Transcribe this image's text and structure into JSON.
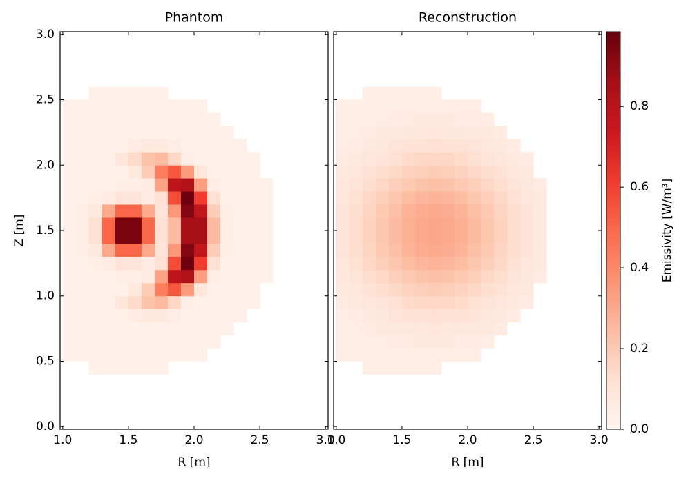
{
  "chart_data": [
    {
      "type": "heatmap",
      "title": "Phantom",
      "xlabel": "R [m]",
      "ylabel": "Z [m]",
      "x": [
        1.05,
        1.15,
        1.25,
        1.35,
        1.45,
        1.55,
        1.65,
        1.75,
        1.85,
        1.95,
        2.05,
        2.15,
        2.25,
        2.35,
        2.45,
        2.55
      ],
      "y": [
        0.45,
        0.55,
        0.65,
        0.75,
        0.85,
        0.95,
        1.05,
        1.15,
        1.25,
        1.35,
        1.45,
        1.55,
        1.65,
        1.75,
        1.85,
        1.95,
        2.05,
        2.15,
        2.25,
        2.35,
        2.45,
        2.55
      ],
      "values": [
        [
          null,
          null,
          0.03,
          0.03,
          0.03,
          0.03,
          0.03,
          0.03,
          null,
          null,
          null,
          null,
          null,
          null,
          null,
          null
        ],
        [
          0.03,
          0.03,
          0.03,
          0.03,
          0.03,
          0.03,
          0.03,
          0.03,
          0.03,
          0.03,
          0.03,
          null,
          null,
          null,
          null,
          null
        ],
        [
          0.03,
          0.03,
          0.03,
          0.03,
          0.03,
          0.03,
          0.03,
          0.03,
          0.03,
          0.03,
          0.03,
          0.03,
          null,
          null,
          null,
          null
        ],
        [
          0.03,
          0.03,
          0.03,
          0.03,
          0.03,
          0.03,
          0.03,
          0.03,
          0.03,
          0.03,
          0.03,
          0.03,
          0.03,
          null,
          null,
          null
        ],
        [
          0.03,
          0.03,
          0.03,
          0.03,
          0.03,
          0.06,
          0.07,
          0.07,
          0.05,
          0.03,
          0.03,
          0.03,
          0.03,
          0.03,
          null,
          null
        ],
        [
          0.03,
          0.03,
          0.03,
          0.03,
          0.09,
          0.14,
          0.22,
          0.25,
          0.15,
          0.05,
          0.03,
          0.03,
          0.03,
          0.03,
          0.03,
          null
        ],
        [
          0.03,
          0.03,
          0.03,
          0.03,
          0.03,
          0.07,
          0.19,
          0.43,
          0.54,
          0.34,
          0.09,
          0.03,
          0.03,
          0.03,
          0.03,
          null
        ],
        [
          0.03,
          0.03,
          0.03,
          0.03,
          0.04,
          0.04,
          0.06,
          0.32,
          0.78,
          0.82,
          0.33,
          0.05,
          0.03,
          0.03,
          0.03,
          0.03
        ],
        [
          0.03,
          0.03,
          0.04,
          0.06,
          0.1,
          0.1,
          0.06,
          0.12,
          0.57,
          0.97,
          0.61,
          0.12,
          0.03,
          0.03,
          0.03,
          0.03
        ],
        [
          0.03,
          0.04,
          0.07,
          0.3,
          0.5,
          0.5,
          0.3,
          0.1,
          0.35,
          0.93,
          0.77,
          0.19,
          0.04,
          0.03,
          0.03,
          0.03
        ],
        [
          0.03,
          0.05,
          0.12,
          0.5,
          0.95,
          0.95,
          0.5,
          0.12,
          0.25,
          0.86,
          0.86,
          0.25,
          0.05,
          0.03,
          0.03,
          0.03
        ],
        [
          0.03,
          0.05,
          0.12,
          0.5,
          0.95,
          0.95,
          0.5,
          0.12,
          0.25,
          0.86,
          0.86,
          0.25,
          0.05,
          0.03,
          0.03,
          0.03
        ],
        [
          0.03,
          0.04,
          0.07,
          0.3,
          0.5,
          0.5,
          0.3,
          0.1,
          0.35,
          0.93,
          0.77,
          0.19,
          0.04,
          0.03,
          0.03,
          0.03
        ],
        [
          0.03,
          0.03,
          0.04,
          0.06,
          0.1,
          0.1,
          0.06,
          0.12,
          0.57,
          0.97,
          0.61,
          0.12,
          0.03,
          0.03,
          0.03,
          0.03
        ],
        [
          0.03,
          0.03,
          0.03,
          0.03,
          0.04,
          0.04,
          0.06,
          0.32,
          0.78,
          0.82,
          0.33,
          0.05,
          0.03,
          0.03,
          0.03,
          0.03
        ],
        [
          0.03,
          0.03,
          0.03,
          0.03,
          0.03,
          0.07,
          0.19,
          0.43,
          0.54,
          0.34,
          0.09,
          0.03,
          0.03,
          0.03,
          0.03,
          null
        ],
        [
          0.03,
          0.03,
          0.03,
          0.03,
          0.09,
          0.14,
          0.22,
          0.25,
          0.15,
          0.05,
          0.03,
          0.03,
          0.03,
          0.03,
          0.03,
          null
        ],
        [
          0.03,
          0.03,
          0.03,
          0.03,
          0.03,
          0.06,
          0.07,
          0.07,
          0.05,
          0.03,
          0.03,
          0.03,
          0.03,
          0.03,
          null,
          null
        ],
        [
          0.03,
          0.03,
          0.03,
          0.03,
          0.03,
          0.03,
          0.03,
          0.03,
          0.03,
          0.03,
          0.03,
          0.03,
          0.03,
          null,
          null,
          null
        ],
        [
          0.03,
          0.03,
          0.03,
          0.03,
          0.03,
          0.03,
          0.03,
          0.03,
          0.03,
          0.03,
          0.03,
          0.03,
          null,
          null,
          null,
          null
        ],
        [
          0.03,
          0.03,
          0.03,
          0.03,
          0.03,
          0.03,
          0.03,
          0.03,
          0.03,
          0.03,
          0.03,
          null,
          null,
          null,
          null,
          null
        ],
        [
          null,
          null,
          0.03,
          0.03,
          0.03,
          0.03,
          0.03,
          0.03,
          null,
          null,
          null,
          null,
          null,
          null,
          null,
          null
        ]
      ],
      "xlim": [
        0.98,
        3.02
      ],
      "ylim": [
        -0.02,
        3.02
      ],
      "xticks": [
        {
          "value": 1,
          "label": "1.0"
        },
        1.5,
        {
          "value": 2,
          "label": "2.0"
        },
        2.5,
        {
          "value": 3,
          "label": "3.0"
        }
      ],
      "yticks": [
        {
          "value": 0,
          "label": "0.0"
        },
        0.5,
        {
          "value": 1,
          "label": "1.0"
        },
        1.5,
        {
          "value": 2,
          "label": "2.0"
        },
        2.5,
        {
          "value": 3,
          "label": "3.0"
        }
      ]
    },
    {
      "type": "heatmap",
      "title": "Reconstruction",
      "xlabel": "R [m]",
      "x": [
        1.05,
        1.15,
        1.25,
        1.35,
        1.45,
        1.55,
        1.65,
        1.75,
        1.85,
        1.95,
        2.05,
        2.15,
        2.25,
        2.35,
        2.45,
        2.55
      ],
      "y": [
        0.45,
        0.55,
        0.65,
        0.75,
        0.85,
        0.95,
        1.05,
        1.15,
        1.25,
        1.35,
        1.45,
        1.55,
        1.65,
        1.75,
        1.85,
        1.95,
        2.05,
        2.15,
        2.25,
        2.35,
        2.45,
        2.55
      ],
      "values": [
        [
          null,
          null,
          0.04,
          0.04,
          0.04,
          0.04,
          0.04,
          0.04,
          null,
          null,
          null,
          null,
          null,
          null,
          null,
          null
        ],
        [
          0.04,
          0.04,
          0.04,
          0.04,
          0.05,
          0.05,
          0.05,
          0.05,
          0.05,
          0.05,
          0.05,
          null,
          null,
          null,
          null,
          null
        ],
        [
          0.04,
          0.04,
          0.05,
          0.05,
          0.06,
          0.06,
          0.07,
          0.07,
          0.07,
          0.06,
          0.06,
          0.05,
          null,
          null,
          null,
          null
        ],
        [
          0.04,
          0.05,
          0.06,
          0.07,
          0.07,
          0.08,
          0.08,
          0.09,
          0.08,
          0.08,
          0.07,
          0.07,
          0.06,
          null,
          null,
          null
        ],
        [
          0.05,
          0.06,
          0.07,
          0.08,
          0.1,
          0.11,
          0.11,
          0.12,
          0.11,
          0.11,
          0.1,
          0.08,
          0.07,
          0.06,
          null,
          null
        ],
        [
          0.06,
          0.07,
          0.09,
          0.1,
          0.12,
          0.14,
          0.15,
          0.15,
          0.15,
          0.14,
          0.12,
          0.1,
          0.09,
          0.07,
          0.06,
          null
        ],
        [
          0.07,
          0.09,
          0.11,
          0.13,
          0.15,
          0.17,
          0.18,
          0.19,
          0.18,
          0.17,
          0.15,
          0.13,
          0.11,
          0.09,
          0.07,
          null
        ],
        [
          0.08,
          0.1,
          0.13,
          0.15,
          0.18,
          0.2,
          0.22,
          0.23,
          0.22,
          0.2,
          0.18,
          0.15,
          0.13,
          0.1,
          0.08,
          0.06
        ],
        [
          0.09,
          0.12,
          0.15,
          0.18,
          0.21,
          0.24,
          0.26,
          0.27,
          0.26,
          0.24,
          0.21,
          0.18,
          0.15,
          0.12,
          0.09,
          0.07
        ],
        [
          0.1,
          0.13,
          0.16,
          0.2,
          0.23,
          0.27,
          0.29,
          0.3,
          0.29,
          0.27,
          0.23,
          0.2,
          0.16,
          0.13,
          0.1,
          0.07
        ],
        [
          0.1,
          0.13,
          0.17,
          0.21,
          0.25,
          0.28,
          0.3,
          0.31,
          0.3,
          0.28,
          0.25,
          0.21,
          0.17,
          0.13,
          0.1,
          0.07
        ],
        [
          0.1,
          0.13,
          0.17,
          0.21,
          0.25,
          0.28,
          0.3,
          0.31,
          0.3,
          0.28,
          0.25,
          0.21,
          0.17,
          0.13,
          0.1,
          0.07
        ],
        [
          0.1,
          0.13,
          0.16,
          0.2,
          0.23,
          0.27,
          0.29,
          0.3,
          0.29,
          0.27,
          0.23,
          0.2,
          0.16,
          0.13,
          0.1,
          0.07
        ],
        [
          0.09,
          0.12,
          0.15,
          0.18,
          0.21,
          0.24,
          0.26,
          0.27,
          0.26,
          0.24,
          0.21,
          0.18,
          0.15,
          0.12,
          0.09,
          0.07
        ],
        [
          0.08,
          0.1,
          0.13,
          0.15,
          0.18,
          0.2,
          0.22,
          0.23,
          0.22,
          0.2,
          0.18,
          0.15,
          0.13,
          0.1,
          0.08,
          0.06
        ],
        [
          0.07,
          0.09,
          0.11,
          0.13,
          0.15,
          0.17,
          0.18,
          0.19,
          0.18,
          0.17,
          0.15,
          0.13,
          0.11,
          0.09,
          0.07,
          null
        ],
        [
          0.06,
          0.07,
          0.09,
          0.1,
          0.12,
          0.14,
          0.15,
          0.15,
          0.15,
          0.14,
          0.12,
          0.1,
          0.09,
          0.07,
          0.06,
          null
        ],
        [
          0.05,
          0.06,
          0.07,
          0.08,
          0.1,
          0.11,
          0.11,
          0.12,
          0.11,
          0.11,
          0.1,
          0.08,
          0.07,
          0.06,
          null,
          null
        ],
        [
          0.04,
          0.05,
          0.06,
          0.07,
          0.07,
          0.08,
          0.08,
          0.09,
          0.08,
          0.08,
          0.07,
          0.07,
          0.06,
          null,
          null,
          null
        ],
        [
          0.04,
          0.04,
          0.05,
          0.05,
          0.06,
          0.06,
          0.07,
          0.07,
          0.07,
          0.06,
          0.06,
          0.05,
          null,
          null,
          null,
          null
        ],
        [
          0.04,
          0.04,
          0.04,
          0.04,
          0.05,
          0.05,
          0.05,
          0.05,
          0.05,
          0.05,
          0.05,
          null,
          null,
          null,
          null,
          null
        ],
        [
          null,
          null,
          0.04,
          0.04,
          0.04,
          0.04,
          0.04,
          0.04,
          null,
          null,
          null,
          null,
          null,
          null,
          null,
          null
        ]
      ],
      "xlim": [
        0.98,
        3.02
      ],
      "ylim": [
        -0.02,
        3.02
      ],
      "xticks": [
        {
          "value": 1,
          "label": "1.0"
        },
        1.5,
        {
          "value": 2,
          "label": "2.0"
        },
        2.5,
        {
          "value": 3,
          "label": "3.0"
        }
      ],
      "ytick_marks": [
        0,
        0.5,
        1,
        1.5,
        2,
        2.5,
        3
      ]
    }
  ],
  "colorbar": {
    "label": "Emissivity [W/m³]",
    "clim": [
      0,
      0.985
    ],
    "ticks": [
      {
        "value": 0,
        "label": "0.0"
      },
      0.2,
      0.4,
      0.6,
      0.8
    ],
    "colormap": [
      "#fff5f0",
      "#fee0d2",
      "#fcbba1",
      "#fc9272",
      "#fb6a4a",
      "#ef3b2c",
      "#cb181d",
      "#a50f15",
      "#67000d"
    ]
  }
}
